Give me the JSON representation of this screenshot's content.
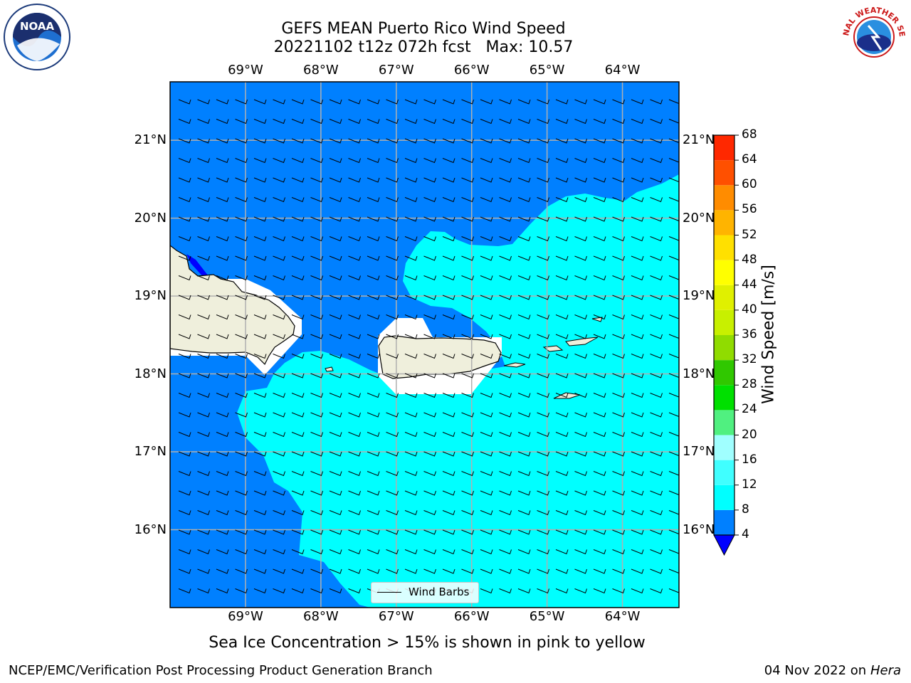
{
  "title": {
    "line1": "GEFS MEAN Puerto Rico Wind Speed",
    "line2": "20221102 t12z 072h fcst   Max: 10.57"
  },
  "map": {
    "lon_labels": [
      "69°W",
      "68°W",
      "67°W",
      "66°W",
      "65°W",
      "64°W"
    ],
    "lat_labels": [
      "21°N",
      "20°N",
      "19°N",
      "18°N",
      "17°N",
      "16°N"
    ],
    "extent": {
      "lon_min": -70.0,
      "lon_max": -63.25,
      "lat_min": 15.0,
      "lat_max": 21.75
    },
    "land_color": "#efefdc",
    "grid_color": "#b0b0b0",
    "legend_label": "Wind Barbs"
  },
  "colorbar": {
    "label": "Wind Speed [m/s]",
    "ticks": [
      "68",
      "64",
      "60",
      "56",
      "52",
      "48",
      "44",
      "40",
      "36",
      "32",
      "28",
      "24",
      "20",
      "16",
      "12",
      "8",
      "4"
    ],
    "colors_low_to_high": [
      "#0080ff",
      "#00ffff",
      "#40ffff",
      "#a0ffff",
      "#50f080",
      "#00e000",
      "#30c800",
      "#90dc00",
      "#c8f000",
      "#e0f000",
      "#ffff00",
      "#ffe000",
      "#ffb400",
      "#ff8c00",
      "#ff5000",
      "#ff2800",
      "#ff0000"
    ],
    "under_color": "#0000ff"
  },
  "subtitle": "Sea Ice Concentration > 15% is shown in pink to yellow",
  "footer": {
    "left": "NCEP/EMC/Verification Post Processing Product Generation Branch",
    "date": "04 Nov 2022 on",
    "host": "Hera"
  },
  "logos": {
    "noaa_text": "NOAA",
    "nws_text": "NATIONAL WEATHER SERVICE"
  }
}
